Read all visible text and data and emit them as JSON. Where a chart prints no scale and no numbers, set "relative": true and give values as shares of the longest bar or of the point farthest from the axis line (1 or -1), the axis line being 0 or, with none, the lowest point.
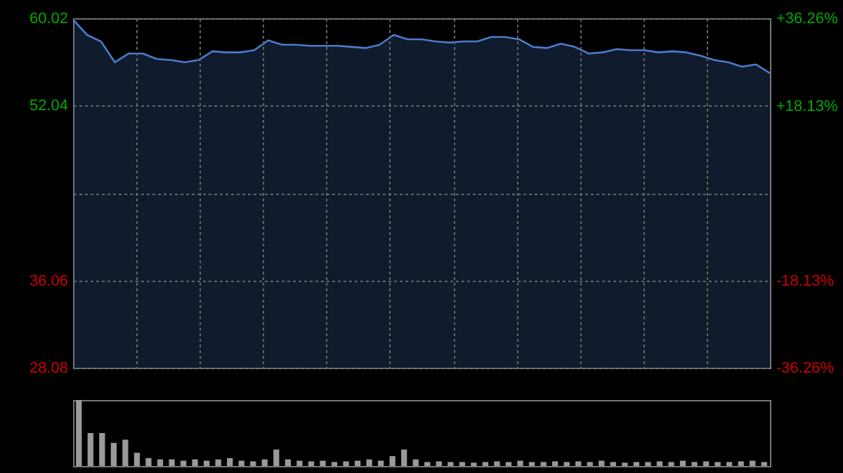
{
  "chart_data": [
    {
      "type": "area",
      "categories": [
        null,
        null,
        null,
        null,
        null,
        null,
        null,
        null,
        null,
        null,
        null,
        null,
        null,
        null,
        null,
        null,
        null,
        null,
        null,
        null,
        null,
        null,
        null,
        null,
        null,
        null,
        null,
        null,
        null,
        null,
        null,
        null,
        null,
        null,
        null,
        null,
        null,
        null,
        null,
        null,
        null,
        null,
        null,
        null,
        null,
        null,
        null,
        null,
        null,
        null,
        null
      ],
      "series": [
        {
          "color": "#4a7ccc",
          "values": [
            59.9,
            58.5,
            57.9,
            56.0,
            56.8,
            56.8,
            56.3,
            56.2,
            56.0,
            56.2,
            57.0,
            56.9,
            56.9,
            57.1,
            58.0,
            57.6,
            57.6,
            57.5,
            57.5,
            57.5,
            57.4,
            57.3,
            57.6,
            58.5,
            58.1,
            58.1,
            57.9,
            57.8,
            57.9,
            57.9,
            58.3,
            58.3,
            58.1,
            57.4,
            57.3,
            57.7,
            57.4,
            56.8,
            56.9,
            57.2,
            57.1,
            57.1,
            56.9,
            57.0,
            56.9,
            56.6,
            56.2,
            56.0,
            55.6,
            55.8,
            55.0
          ]
        }
      ],
      "ylim": [
        28.08,
        60.02
      ],
      "yticks": [
        28.08,
        36.06,
        {
          "value": 44.05,
          "label": null
        },
        52.04,
        60.02
      ],
      "y2lim": [
        -36.26,
        36.26
      ],
      "y2ticks": [
        {
          "value": -36.26,
          "label": "-36.26%"
        },
        {
          "value": -18.13,
          "label": "-18.13%"
        },
        {
          "value": 0,
          "label": null
        },
        {
          "value": 18.13,
          "label": "+18.13%"
        },
        {
          "value": 36.26,
          "label": "+36.26%"
        }
      ],
      "grid": true
    },
    {
      "type": "bar",
      "relative": true,
      "categories": [
        null,
        null,
        null,
        null,
        null,
        null,
        null,
        null,
        null,
        null,
        null,
        null,
        null,
        null,
        null,
        null,
        null,
        null,
        null,
        null,
        null,
        null,
        null,
        null,
        null,
        null,
        null,
        null,
        null,
        null,
        null,
        null,
        null,
        null,
        null,
        null,
        null,
        null,
        null,
        null,
        null,
        null,
        null,
        null,
        null,
        null,
        null,
        null,
        null,
        null,
        null,
        null,
        null,
        null,
        null,
        null,
        null,
        null,
        null,
        null
      ],
      "series": [
        {
          "color": "#9a9a9a",
          "values": [
            1.0,
            0.5,
            0.5,
            0.35,
            0.4,
            0.2,
            0.12,
            0.1,
            0.1,
            0.08,
            0.1,
            0.08,
            0.1,
            0.12,
            0.08,
            0.07,
            0.1,
            0.25,
            0.1,
            0.08,
            0.07,
            0.08,
            0.06,
            0.07,
            0.08,
            0.1,
            0.08,
            0.15,
            0.25,
            0.1,
            0.06,
            0.07,
            0.06,
            0.06,
            0.05,
            0.06,
            0.07,
            0.06,
            0.08,
            0.06,
            0.06,
            0.07,
            0.06,
            0.07,
            0.06,
            0.08,
            0.06,
            0.05,
            0.06,
            0.06,
            0.07,
            0.06,
            0.08,
            0.06,
            0.07,
            0.06,
            0.06,
            0.07,
            0.08,
            0.06
          ]
        }
      ]
    }
  ]
}
